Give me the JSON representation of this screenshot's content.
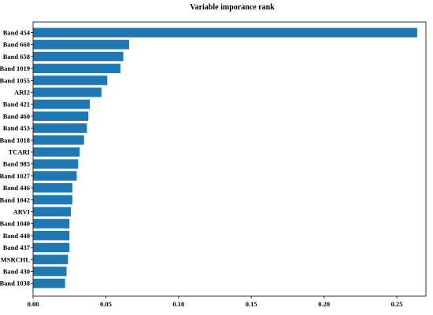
{
  "chart_data": {
    "type": "bar",
    "orientation": "horizontal",
    "title": "Variable imporance rank",
    "xlabel": "",
    "ylabel": "",
    "xlim": [
      0,
      0.27
    ],
    "x_ticks": [
      "0.00",
      "0.05",
      "0.10",
      "0.15",
      "0.20",
      "0.25"
    ],
    "grid": false,
    "bar_color": "#1f77b4",
    "categories": [
      "Band 454",
      "Band 660",
      "Band 658",
      "Band 1019",
      "Band 1055",
      "ARI2",
      "Band 421",
      "Band 460",
      "Band 453",
      "Band 1018",
      "TCARI",
      "Band 985",
      "Band 1027",
      "Band 446",
      "Band 1042",
      "ARVI",
      "Band 1040",
      "Band 448",
      "Band 437",
      "MSRCHL",
      "Band 430",
      "Band 1038"
    ],
    "values": [
      0.264,
      0.066,
      0.062,
      0.06,
      0.051,
      0.047,
      0.039,
      0.038,
      0.037,
      0.035,
      0.032,
      0.031,
      0.03,
      0.027,
      0.027,
      0.026,
      0.025,
      0.025,
      0.025,
      0.024,
      0.023,
      0.022
    ]
  }
}
